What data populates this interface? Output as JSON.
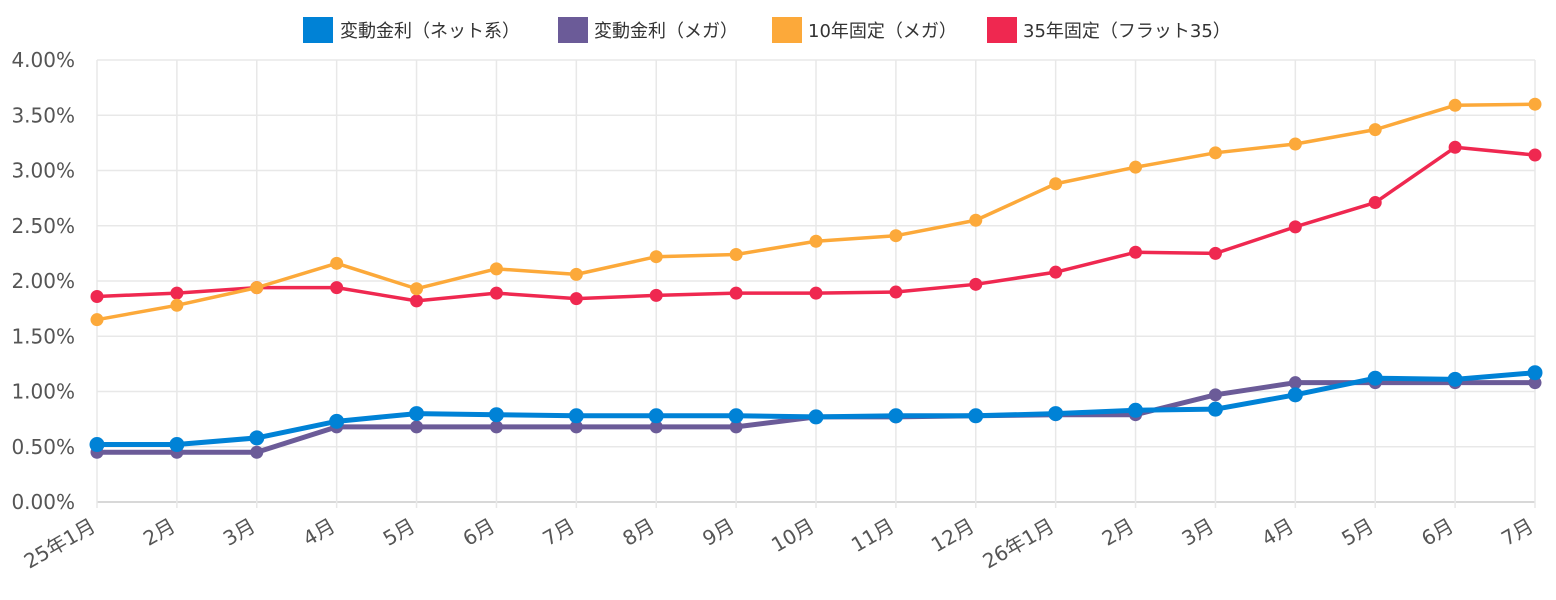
{
  "chart_data": {
    "type": "line",
    "title": "",
    "xlabel": "",
    "ylabel": "",
    "categories": [
      "25年1月",
      "2月",
      "3月",
      "4月",
      "5月",
      "6月",
      "7月",
      "8月",
      "9月",
      "10月",
      "11月",
      "12月",
      "26年1月",
      "2月",
      "3月",
      "4月",
      "5月",
      "6月",
      "7月"
    ],
    "ylim": [
      0,
      4.0
    ],
    "yticks": [
      "0.00%",
      "0.50%",
      "1.00%",
      "1.50%",
      "2.00%",
      "2.50%",
      "3.00%",
      "3.50%",
      "4.00%"
    ],
    "ytick_values": [
      0,
      0.5,
      1.0,
      1.5,
      2.0,
      2.5,
      3.0,
      3.5,
      4.0
    ],
    "grid": true,
    "legend_position": "top",
    "series": [
      {
        "name": "変動金利（ネット系）",
        "color": "#0082d6",
        "values": [
          0.52,
          0.52,
          0.58,
          0.73,
          0.8,
          0.79,
          0.78,
          0.78,
          0.78,
          0.77,
          0.78,
          0.78,
          0.8,
          0.83,
          0.84,
          0.97,
          1.12,
          1.11,
          1.17
        ]
      },
      {
        "name": "変動金利（メガ）",
        "color": "#6b5b98",
        "values": [
          0.45,
          0.45,
          0.45,
          0.68,
          0.68,
          0.68,
          0.68,
          0.68,
          0.68,
          0.77,
          0.77,
          0.78,
          0.79,
          0.79,
          0.97,
          1.08,
          1.08,
          1.08,
          1.08
        ]
      },
      {
        "name": "10年固定（メガ）",
        "color": "#fca93a",
        "values": [
          1.65,
          1.78,
          1.94,
          2.16,
          1.93,
          2.11,
          2.06,
          2.22,
          2.24,
          2.36,
          2.41,
          2.55,
          2.88,
          3.03,
          3.16,
          3.24,
          3.37,
          3.59,
          3.6
        ]
      },
      {
        "name": "35年固定（フラット35）",
        "color": "#ef2850",
        "values": [
          1.86,
          1.89,
          1.94,
          1.94,
          1.82,
          1.89,
          1.84,
          1.87,
          1.89,
          1.89,
          1.9,
          1.97,
          2.08,
          2.26,
          2.25,
          2.49,
          2.71,
          3.21,
          3.14
        ]
      }
    ]
  }
}
